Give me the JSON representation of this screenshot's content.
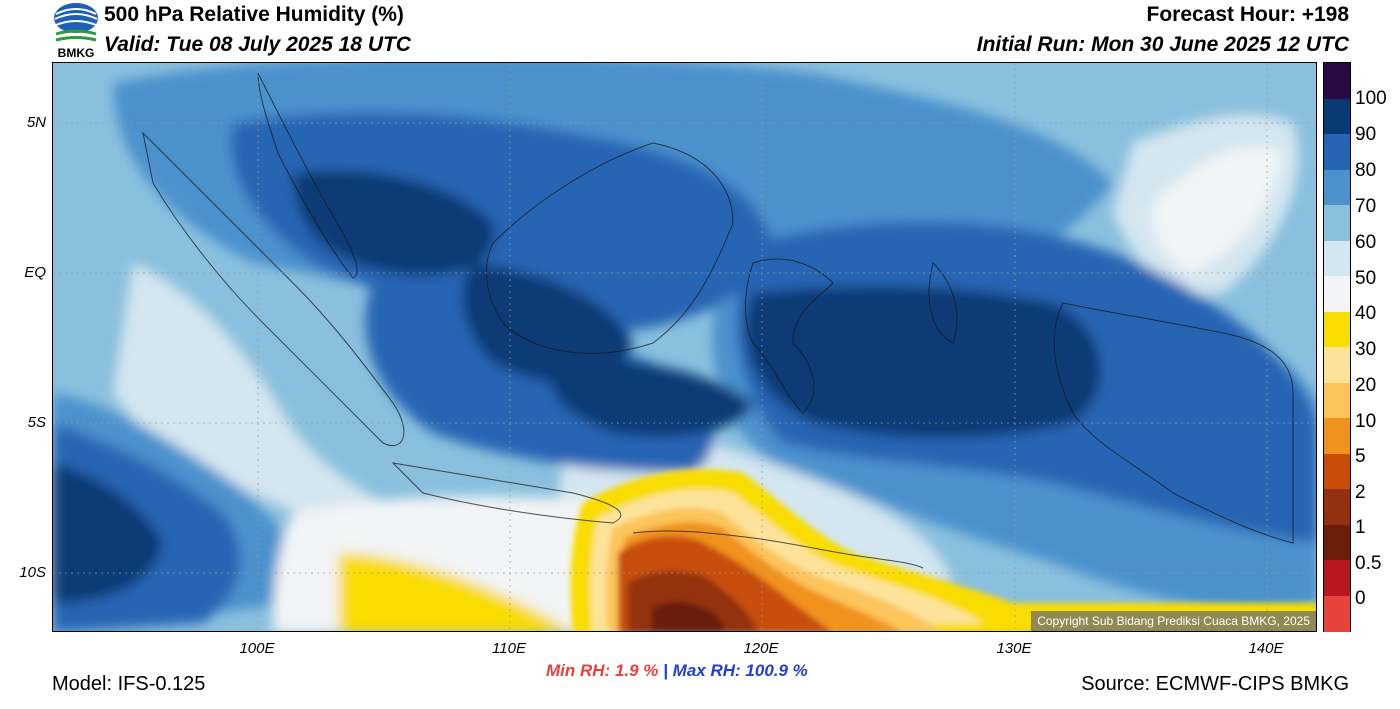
{
  "header": {
    "title": "500 hPa Relative Humidity (%)",
    "valid": "Valid: Tue 08 July 2025 18 UTC",
    "forecast_hour": "Forecast Hour: +198",
    "initial_run": "Initial Run: Mon 30 June 2025 12 UTC",
    "logo_text": "BMKG"
  },
  "map": {
    "lat_labels": [
      "5N",
      "EQ",
      "5S",
      "10S"
    ],
    "lon_labels": [
      "100E",
      "110E",
      "120E",
      "130E",
      "140E"
    ],
    "copyright": "Copyright Sub Bidang Prediksi Cuaca BMKG, 2025",
    "colors": {
      "c0": "#e8433b",
      "c05": "#b71720",
      "c1": "#6b1e0c",
      "c2": "#933010",
      "c5": "#c94d08",
      "c10": "#f0921e",
      "c20": "#fcc45a",
      "c30": "#fde39a",
      "c40": "#f9dc00",
      "c50": "#f2f4f5",
      "c60": "#d4e6f0",
      "c70": "#8ac0de",
      "c80": "#4b92cd",
      "c90": "#2565b4",
      "c100": "#0a3a75",
      "c_max": "#2a0a45"
    }
  },
  "colorbar": {
    "labels": [
      "100",
      "90",
      "80",
      "70",
      "60",
      "50",
      "40",
      "30",
      "20",
      "10",
      "5",
      "2",
      "1",
      "0.5",
      "0"
    ],
    "colors": [
      "#2a0a45",
      "#0a3a75",
      "#2565b4",
      "#4b92cd",
      "#8ac0de",
      "#d4e6f0",
      "#f2f4f5",
      "#f9dc00",
      "#fde39a",
      "#fcc45a",
      "#f0921e",
      "#c94d08",
      "#933010",
      "#6b1e0c",
      "#b71720",
      "#e8433b"
    ]
  },
  "stats": {
    "min_label": "Min RH:",
    "min_value": "1.9 %",
    "separator": "|",
    "max_label": "Max RH:",
    "max_value": "100.9 %"
  },
  "footer": {
    "model": "Model: IFS-0.125",
    "source": "Source: ECMWF-CIPS BMKG"
  }
}
